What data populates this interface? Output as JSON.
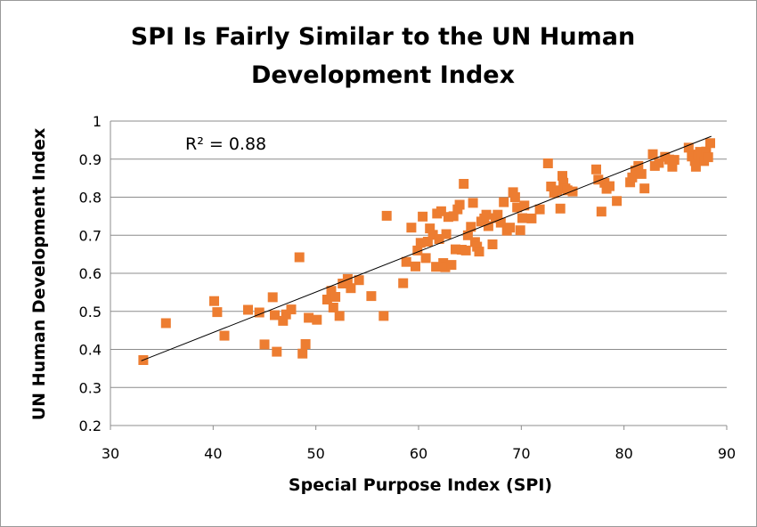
{
  "chart_data": {
    "type": "scatter",
    "title_lines": [
      "SPI Is Fairly Similar to the UN Human",
      "Development Index"
    ],
    "xlabel": "Special Purpose Index (SPI)",
    "ylabel": "UN Human Development Index",
    "xlim": [
      30,
      90
    ],
    "ylim": [
      0.2,
      1.0
    ],
    "x_ticks": [
      "30",
      "40",
      "50",
      "60",
      "70",
      "80",
      "90"
    ],
    "y_ticks": [
      "0.2",
      "0.3",
      "0.4",
      "0.5",
      "0.6",
      "0.7",
      "0.8",
      "0.9",
      "1"
    ],
    "grid": "horizontal",
    "marker_color": "#ed7d31",
    "trendline": {
      "x": [
        33.0,
        88.5
      ],
      "y": [
        0.37,
        0.96
      ],
      "color": "#000000"
    },
    "annotation": "R² = 0.88",
    "points": [
      [
        33.2,
        0.372
      ],
      [
        35.4,
        0.469
      ],
      [
        40.1,
        0.527
      ],
      [
        40.4,
        0.498
      ],
      [
        41.1,
        0.436
      ],
      [
        43.4,
        0.504
      ],
      [
        44.5,
        0.497
      ],
      [
        45.0,
        0.413
      ],
      [
        45.8,
        0.537
      ],
      [
        46.0,
        0.49
      ],
      [
        46.2,
        0.394
      ],
      [
        46.8,
        0.475
      ],
      [
        47.1,
        0.492
      ],
      [
        47.6,
        0.505
      ],
      [
        48.4,
        0.642
      ],
      [
        48.7,
        0.389
      ],
      [
        49.0,
        0.414
      ],
      [
        49.3,
        0.483
      ],
      [
        50.1,
        0.478
      ],
      [
        51.1,
        0.531
      ],
      [
        51.5,
        0.554
      ],
      [
        51.7,
        0.51
      ],
      [
        51.9,
        0.538
      ],
      [
        52.3,
        0.488
      ],
      [
        52.6,
        0.573
      ],
      [
        53.1,
        0.585
      ],
      [
        53.4,
        0.561
      ],
      [
        54.2,
        0.582
      ],
      [
        55.4,
        0.54
      ],
      [
        56.6,
        0.488
      ],
      [
        56.9,
        0.751
      ],
      [
        58.5,
        0.574
      ],
      [
        58.8,
        0.63
      ],
      [
        59.3,
        0.72
      ],
      [
        59.7,
        0.618
      ],
      [
        59.9,
        0.66
      ],
      [
        60.2,
        0.68
      ],
      [
        60.4,
        0.749
      ],
      [
        60.7,
        0.64
      ],
      [
        60.9,
        0.683
      ],
      [
        61.1,
        0.718
      ],
      [
        61.4,
        0.701
      ],
      [
        61.7,
        0.617
      ],
      [
        61.8,
        0.757
      ],
      [
        62.0,
        0.69
      ],
      [
        62.2,
        0.763
      ],
      [
        62.4,
        0.627
      ],
      [
        62.6,
        0.616
      ],
      [
        62.7,
        0.703
      ],
      [
        62.9,
        0.748
      ],
      [
        63.2,
        0.622
      ],
      [
        63.4,
        0.75
      ],
      [
        63.6,
        0.663
      ],
      [
        63.8,
        0.768
      ],
      [
        64.0,
        0.78
      ],
      [
        64.2,
        0.662
      ],
      [
        64.4,
        0.835
      ],
      [
        64.6,
        0.66
      ],
      [
        64.8,
        0.7
      ],
      [
        65.1,
        0.722
      ],
      [
        65.3,
        0.785
      ],
      [
        65.5,
        0.682
      ],
      [
        65.7,
        0.67
      ],
      [
        65.9,
        0.657
      ],
      [
        66.1,
        0.736
      ],
      [
        66.4,
        0.744
      ],
      [
        66.6,
        0.754
      ],
      [
        66.8,
        0.724
      ],
      [
        67.2,
        0.676
      ],
      [
        67.5,
        0.745
      ],
      [
        67.7,
        0.754
      ],
      [
        68.0,
        0.733
      ],
      [
        68.3,
        0.787
      ],
      [
        68.6,
        0.712
      ],
      [
        68.9,
        0.72
      ],
      [
        69.2,
        0.813
      ],
      [
        69.4,
        0.8
      ],
      [
        69.6,
        0.773
      ],
      [
        69.9,
        0.713
      ],
      [
        70.1,
        0.745
      ],
      [
        70.3,
        0.778
      ],
      [
        71.0,
        0.744
      ],
      [
        71.8,
        0.768
      ],
      [
        72.6,
        0.889
      ],
      [
        72.9,
        0.828
      ],
      [
        73.2,
        0.811
      ],
      [
        73.5,
        0.818
      ],
      [
        73.8,
        0.77
      ],
      [
        74.0,
        0.856
      ],
      [
        74.1,
        0.838
      ],
      [
        74.3,
        0.823
      ],
      [
        74.5,
        0.818
      ],
      [
        75.0,
        0.815
      ],
      [
        77.3,
        0.873
      ],
      [
        77.5,
        0.846
      ],
      [
        77.8,
        0.762
      ],
      [
        78.1,
        0.838
      ],
      [
        78.3,
        0.822
      ],
      [
        78.6,
        0.829
      ],
      [
        79.3,
        0.79
      ],
      [
        80.6,
        0.839
      ],
      [
        80.8,
        0.852
      ],
      [
        81.1,
        0.87
      ],
      [
        81.4,
        0.882
      ],
      [
        81.7,
        0.861
      ],
      [
        82.0,
        0.823
      ],
      [
        82.8,
        0.913
      ],
      [
        83.0,
        0.882
      ],
      [
        83.4,
        0.89
      ],
      [
        84.0,
        0.906
      ],
      [
        84.4,
        0.899
      ],
      [
        84.7,
        0.88
      ],
      [
        84.9,
        0.898
      ],
      [
        86.3,
        0.93
      ],
      [
        86.6,
        0.907
      ],
      [
        86.9,
        0.895
      ],
      [
        87.0,
        0.88
      ],
      [
        87.2,
        0.912
      ],
      [
        87.4,
        0.919
      ],
      [
        87.6,
        0.903
      ],
      [
        87.8,
        0.895
      ],
      [
        88.0,
        0.92
      ],
      [
        88.2,
        0.905
      ],
      [
        88.4,
        0.942
      ]
    ]
  }
}
